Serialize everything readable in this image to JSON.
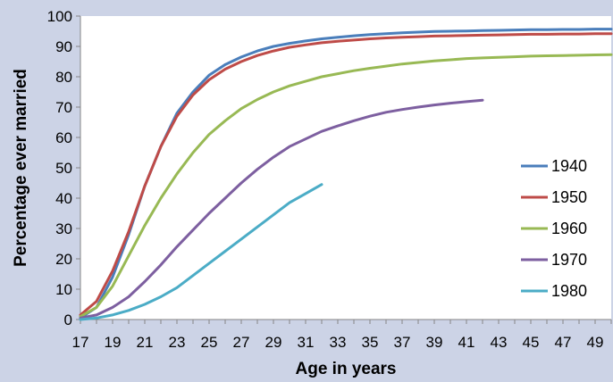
{
  "chart_data": {
    "type": "line",
    "title": "",
    "xlabel": "Age in years",
    "ylabel": "Percentage ever married",
    "xlim": [
      17,
      50
    ],
    "ylim": [
      0,
      100
    ],
    "x_ticks": [
      17,
      19,
      21,
      23,
      25,
      27,
      29,
      31,
      33,
      35,
      37,
      39,
      41,
      43,
      45,
      47,
      49
    ],
    "y_ticks": [
      0,
      10,
      20,
      30,
      40,
      50,
      60,
      70,
      80,
      90,
      100
    ],
    "grid": false,
    "legend_position": "right",
    "series": [
      {
        "name": "1940",
        "color": "#4a7ebb",
        "x": [
          17,
          18,
          19,
          20,
          21,
          22,
          23,
          24,
          25,
          26,
          27,
          28,
          29,
          30,
          31,
          32,
          33,
          34,
          35,
          36,
          37,
          38,
          39,
          40,
          41,
          42,
          43,
          44,
          45,
          46,
          47,
          48,
          49,
          50
        ],
        "values": [
          0.5,
          4,
          14,
          28,
          44,
          57,
          68,
          75,
          80.5,
          84,
          86.5,
          88.5,
          90,
          91,
          91.8,
          92.5,
          93,
          93.5,
          93.9,
          94.2,
          94.5,
          94.7,
          94.9,
          95,
          95.1,
          95.2,
          95.3,
          95.4,
          95.5,
          95.5,
          95.6,
          95.6,
          95.7,
          95.7
        ]
      },
      {
        "name": "1950",
        "color": "#be4b48",
        "x": [
          17,
          18,
          19,
          20,
          21,
          22,
          23,
          24,
          25,
          26,
          27,
          28,
          29,
          30,
          31,
          32,
          33,
          34,
          35,
          36,
          37,
          38,
          39,
          40,
          41,
          42,
          43,
          44,
          45,
          46,
          47,
          48,
          49,
          50
        ],
        "values": [
          1.5,
          6,
          16,
          29,
          44,
          57,
          67,
          74,
          79,
          82.5,
          85,
          87,
          88.5,
          89.7,
          90.5,
          91.2,
          91.7,
          92.1,
          92.5,
          92.8,
          93,
          93.2,
          93.4,
          93.5,
          93.6,
          93.7,
          93.8,
          93.9,
          94,
          94,
          94.1,
          94.1,
          94.2,
          94.2
        ]
      },
      {
        "name": "1960",
        "color": "#98b954",
        "x": [
          17,
          18,
          19,
          20,
          21,
          22,
          23,
          24,
          25,
          26,
          27,
          28,
          29,
          30,
          31,
          32,
          33,
          34,
          35,
          36,
          37,
          38,
          39,
          40,
          41,
          42,
          43,
          44,
          45,
          46,
          47,
          48,
          49,
          50
        ],
        "values": [
          1,
          4,
          11,
          21,
          31,
          40,
          48,
          55,
          61,
          65.5,
          69.5,
          72.5,
          75,
          77,
          78.5,
          80,
          81,
          82,
          82.8,
          83.5,
          84.2,
          84.7,
          85.2,
          85.6,
          86,
          86.2,
          86.4,
          86.6,
          86.8,
          86.9,
          87,
          87.1,
          87.2,
          87.3
        ]
      },
      {
        "name": "1970",
        "color": "#7d5fa0",
        "x": [
          17,
          18,
          19,
          20,
          21,
          22,
          23,
          24,
          25,
          26,
          27,
          28,
          29,
          30,
          31,
          32,
          33,
          34,
          35,
          36,
          37,
          38,
          39,
          40,
          41,
          42
        ],
        "values": [
          0.5,
          1.5,
          4,
          7.5,
          12.5,
          18,
          24,
          29.5,
          35,
          40,
          45,
          49.5,
          53.5,
          57,
          59.5,
          62,
          63.8,
          65.5,
          67,
          68.3,
          69.2,
          70,
          70.7,
          71.3,
          71.8,
          72.3
        ]
      },
      {
        "name": "1980",
        "color": "#4bacc6",
        "x": [
          17,
          18,
          19,
          20,
          21,
          22,
          23,
          24,
          25,
          26,
          27,
          28,
          29,
          30,
          31,
          32
        ],
        "values": [
          0,
          0.5,
          1.5,
          3,
          5,
          7.5,
          10.5,
          14.5,
          18.5,
          22.5,
          26.5,
          30.5,
          34.5,
          38.5,
          41.5,
          44.5
        ]
      }
    ]
  }
}
